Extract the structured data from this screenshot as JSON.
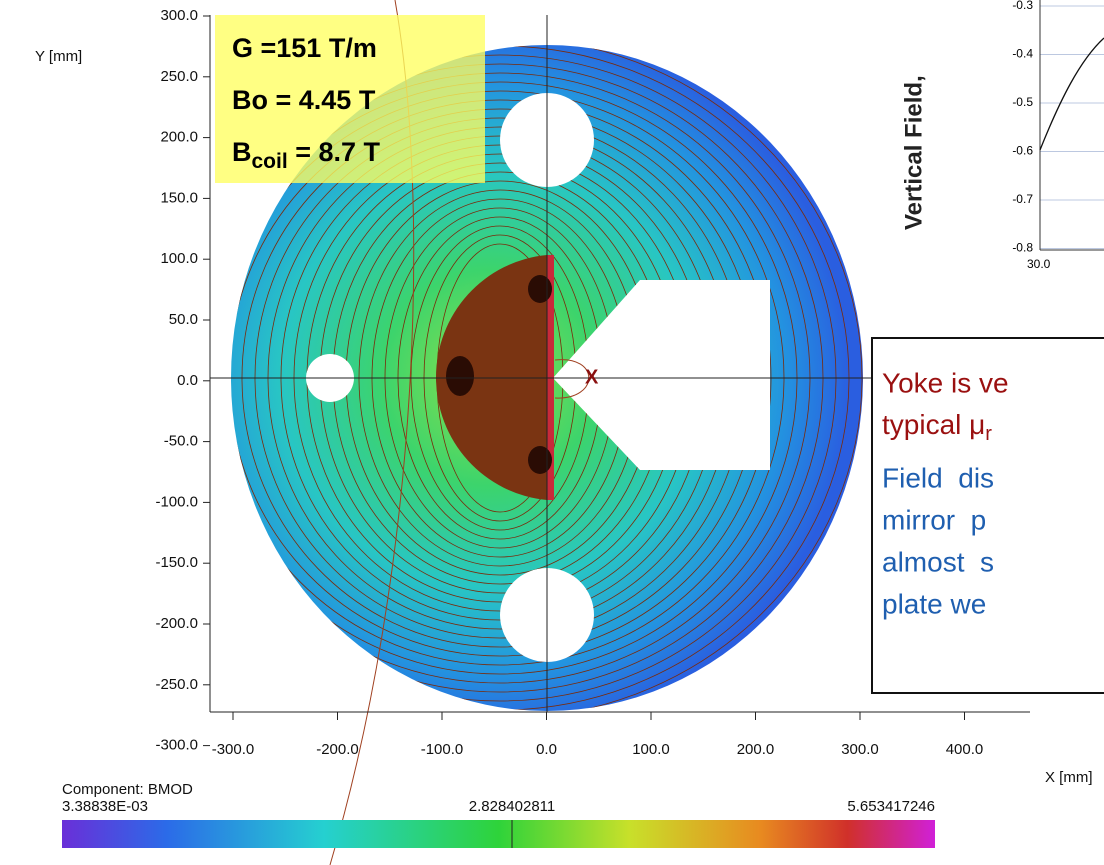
{
  "plot": {
    "y_axis_label": "Y [mm]",
    "x_axis_label": "X [mm]",
    "y_ticks": [
      "300.0",
      "250.0",
      "200.0",
      "150.0",
      "100.0",
      "50.0",
      "0.0",
      "-50.0",
      "-100.0",
      "-150.0",
      "-200.0",
      "-250.0",
      "-300.0"
    ],
    "x_ticks": [
      "-300.0",
      "-200.0",
      "-100.0",
      "0.0",
      "100.0",
      "200.0",
      "300.0",
      "400.0"
    ],
    "marker": "X"
  },
  "params_box": {
    "line1": "G =151 T/m",
    "line2": "Bo = 4.45 T",
    "line3": {
      "base": "B",
      "sub": "coil",
      "rest": " = 8.7 T"
    }
  },
  "colorbar": {
    "component": "Component: BMOD",
    "min": "3.38838E-03",
    "mid": "2.828402811",
    "max": "5.653417246"
  },
  "inset": {
    "y_label": "Vertical Field,",
    "y_ticks": [
      "-0.3",
      "-0.4",
      "-0.5",
      "-0.6",
      "-0.7",
      "-0.8"
    ],
    "x_tick": "30.0"
  },
  "note": {
    "line1": "Yoke is ve",
    "line2": {
      "base": "typical μ",
      "sub": "r"
    },
    "para": [
      "Field  dis",
      "mirror  p",
      "almost  s",
      "plate we"
    ]
  }
}
